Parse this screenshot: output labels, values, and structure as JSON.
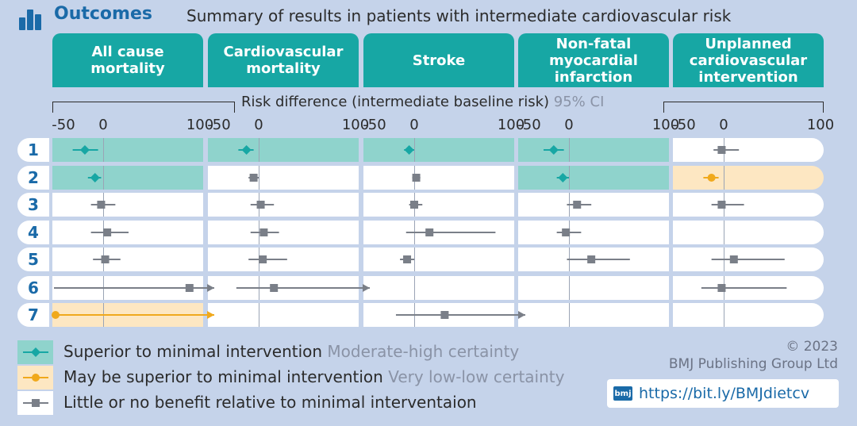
{
  "header": {
    "title": "Outcomes",
    "subtitle": "Summary of results in patients with intermediate cardiovascular risk"
  },
  "axis": {
    "title": "Risk difference (intermediate baseline risk)",
    "ci_label": "95% CI",
    "ticks": [
      "-50",
      "0",
      "100"
    ],
    "tick_values": [
      -50,
      0,
      100
    ]
  },
  "legend": {
    "items": [
      {
        "label": "Superior to minimal intervention",
        "certainty": "Moderate-high certainty",
        "category": "superior"
      },
      {
        "label": "May be superior to minimal intervention",
        "certainty": "Very low-low certainty",
        "category": "may"
      },
      {
        "label": "Little or no benefit relative to minimal interventaion",
        "certainty": "",
        "category": "little"
      }
    ]
  },
  "footer": {
    "copyright": "© 2023\nBMJ Publishing Group Ltd",
    "logo_text": "bmj",
    "url": "https://bit.ly/BMJdietcv"
  },
  "colors": {
    "superior": "#17a7a4",
    "superior_bg": "#8fd3cc",
    "may": "#f0a91c",
    "may_bg": "#fde7c2",
    "little": "#7a7f88",
    "header_teal": "#17a7a4",
    "accent_blue": "#1a6aa8"
  },
  "chart_data": {
    "type": "forest",
    "xlim": [
      -50,
      100
    ],
    "row_labels": [
      "1",
      "2",
      "3",
      "4",
      "5",
      "6",
      "7"
    ],
    "panels": [
      {
        "title": "All cause\nmortality",
        "rows": [
          {
            "row": "1",
            "est": -18,
            "lo": -30,
            "hi": -5,
            "category": "superior"
          },
          {
            "row": "2",
            "est": -8,
            "lo": -15,
            "hi": -2,
            "category": "superior"
          },
          {
            "row": "3",
            "est": -2,
            "lo": -12,
            "hi": 12,
            "category": "little"
          },
          {
            "row": "4",
            "est": 4,
            "lo": -12,
            "hi": 25,
            "category": "little"
          },
          {
            "row": "5",
            "est": 2,
            "lo": -10,
            "hi": 17,
            "category": "little"
          },
          {
            "row": "6",
            "est": 85,
            "lo": -50,
            "hi": 100,
            "category": "little",
            "arrow_lo": false,
            "arrow_hi": true
          },
          {
            "row": "7",
            "est": -50,
            "lo": -50,
            "hi": 100,
            "category": "may",
            "arrow_lo": false,
            "arrow_hi": true
          }
        ]
      },
      {
        "title": "Cardiovascular\nmortality",
        "rows": [
          {
            "row": "1",
            "est": -12,
            "lo": -20,
            "hi": -5,
            "category": "superior"
          },
          {
            "row": "2",
            "est": -5,
            "lo": -10,
            "hi": 0,
            "category": "little"
          },
          {
            "row": "3",
            "est": 2,
            "lo": -8,
            "hi": 15,
            "category": "little"
          },
          {
            "row": "4",
            "est": 5,
            "lo": -8,
            "hi": 20,
            "category": "little"
          },
          {
            "row": "5",
            "est": 4,
            "lo": -10,
            "hi": 28,
            "category": "little"
          },
          {
            "row": "6",
            "est": 15,
            "lo": -22,
            "hi": 100,
            "category": "little",
            "arrow_lo": false,
            "arrow_hi": true
          },
          {
            "row": "7",
            "est": null,
            "lo": null,
            "hi": null,
            "category": "none"
          }
        ]
      },
      {
        "title": "Stroke",
        "rows": [
          {
            "row": "1",
            "est": -5,
            "lo": -10,
            "hi": 0,
            "category": "superior"
          },
          {
            "row": "2",
            "est": 2,
            "lo": -2,
            "hi": 6,
            "category": "little"
          },
          {
            "row": "3",
            "est": 0,
            "lo": -5,
            "hi": 8,
            "category": "little"
          },
          {
            "row": "4",
            "est": 15,
            "lo": -8,
            "hi": 80,
            "category": "little"
          },
          {
            "row": "5",
            "est": -7,
            "lo": -14,
            "hi": 0,
            "category": "little"
          },
          {
            "row": "6",
            "est": null,
            "lo": null,
            "hi": null,
            "category": "none"
          },
          {
            "row": "7",
            "est": 30,
            "lo": -18,
            "hi": 100,
            "category": "little",
            "arrow_lo": false,
            "arrow_hi": true
          }
        ]
      },
      {
        "title": "Non-fatal\nmyocardial\ninfarction",
        "rows": [
          {
            "row": "1",
            "est": -15,
            "lo": -25,
            "hi": -5,
            "category": "superior"
          },
          {
            "row": "2",
            "est": -6,
            "lo": -12,
            "hi": 0,
            "category": "superior"
          },
          {
            "row": "3",
            "est": 8,
            "lo": -2,
            "hi": 22,
            "category": "little"
          },
          {
            "row": "4",
            "est": -3,
            "lo": -12,
            "hi": 12,
            "category": "little"
          },
          {
            "row": "5",
            "est": 22,
            "lo": -2,
            "hi": 60,
            "category": "little"
          },
          {
            "row": "6",
            "est": null,
            "lo": null,
            "hi": null,
            "category": "none"
          },
          {
            "row": "7",
            "est": null,
            "lo": null,
            "hi": null,
            "category": "none"
          }
        ]
      },
      {
        "title": "Unplanned\ncardiovascular\nintervention",
        "rows": [
          {
            "row": "1",
            "est": -2,
            "lo": -10,
            "hi": 15,
            "category": "little"
          },
          {
            "row": "2",
            "est": -12,
            "lo": -20,
            "hi": -5,
            "category": "may"
          },
          {
            "row": "3",
            "est": -2,
            "lo": -12,
            "hi": 20,
            "category": "little"
          },
          {
            "row": "4",
            "est": null,
            "lo": null,
            "hi": null,
            "category": "none"
          },
          {
            "row": "5",
            "est": 10,
            "lo": -12,
            "hi": 60,
            "category": "little"
          },
          {
            "row": "6",
            "est": -2,
            "lo": -22,
            "hi": 62,
            "category": "little"
          },
          {
            "row": "7",
            "est": null,
            "lo": null,
            "hi": null,
            "category": "none"
          }
        ]
      }
    ]
  }
}
